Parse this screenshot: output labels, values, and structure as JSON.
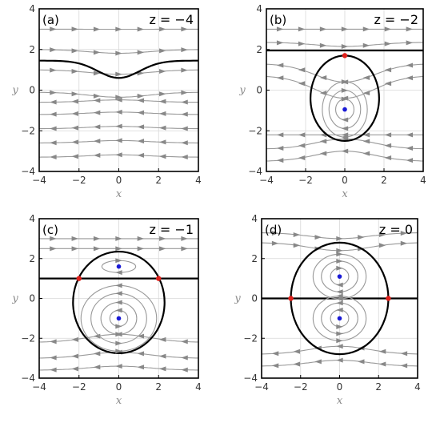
{
  "colors": {
    "streamline": "#999999",
    "arrow": "#888888",
    "separatrix": "#000000",
    "center_point": "#1a1ad6",
    "saddle_point": "#e0201b",
    "grid": "#d8d8d8"
  },
  "chart_data": [
    {
      "type": "streamplot",
      "panel_label": "(a)",
      "annotation": "z = −4",
      "xlabel": "x",
      "ylabel": "y",
      "xlim": [
        -4,
        4
      ],
      "ylim": [
        -4,
        4
      ],
      "xticks": [
        "−4",
        "−2",
        "0",
        "2",
        "4"
      ],
      "yticks": [
        "−4",
        "−2",
        "0",
        "2",
        "4"
      ],
      "grid": true,
      "z": -4,
      "center_points": [],
      "saddle_points": [],
      "separatrix_y": null
    },
    {
      "type": "streamplot",
      "panel_label": "(b)",
      "annotation": "z = −2",
      "xlabel": "x",
      "ylabel": "y",
      "xlim": [
        -4,
        4
      ],
      "ylim": [
        -4,
        4
      ],
      "xticks": [
        "−4",
        "−2",
        "0",
        "2",
        "4"
      ],
      "yticks": [
        "−4",
        "−2",
        "0",
        "2",
        "4"
      ],
      "grid": true,
      "z": -2,
      "center_points": [
        [
          0,
          -0.95
        ]
      ],
      "saddle_points": [
        [
          0,
          1.7
        ]
      ],
      "separatrix_y": 1.95
    },
    {
      "type": "streamplot",
      "panel_label": "(c)",
      "annotation": "z = −1",
      "xlabel": "x",
      "ylabel": "y",
      "xlim": [
        -4,
        4
      ],
      "ylim": [
        -4,
        4
      ],
      "xticks": [
        "−4",
        "−2",
        "0",
        "2",
        "4"
      ],
      "yticks": [
        "−4",
        "−2",
        "0",
        "2",
        "4"
      ],
      "grid": true,
      "z": -1,
      "center_points": [
        [
          0,
          1.6
        ],
        [
          0,
          -1.0
        ]
      ],
      "saddle_points": [
        [
          -2.0,
          1.0
        ],
        [
          2.0,
          1.0
        ]
      ],
      "separatrix_y": 1.0
    },
    {
      "type": "streamplot",
      "panel_label": "(d)",
      "annotation": "z = 0",
      "xlabel": "x",
      "ylabel": "y",
      "xlim": [
        -4,
        4
      ],
      "ylim": [
        -4,
        4
      ],
      "xticks": [
        "−4",
        "−2",
        "0",
        "2",
        "4"
      ],
      "yticks": [
        "−4",
        "−2",
        "0",
        "2",
        "4"
      ],
      "grid": true,
      "z": 0,
      "center_points": [
        [
          0,
          1.1
        ],
        [
          0,
          -1.0
        ]
      ],
      "saddle_points": [
        [
          -2.5,
          0
        ],
        [
          2.5,
          0
        ]
      ],
      "separatrix_y": 0
    }
  ]
}
